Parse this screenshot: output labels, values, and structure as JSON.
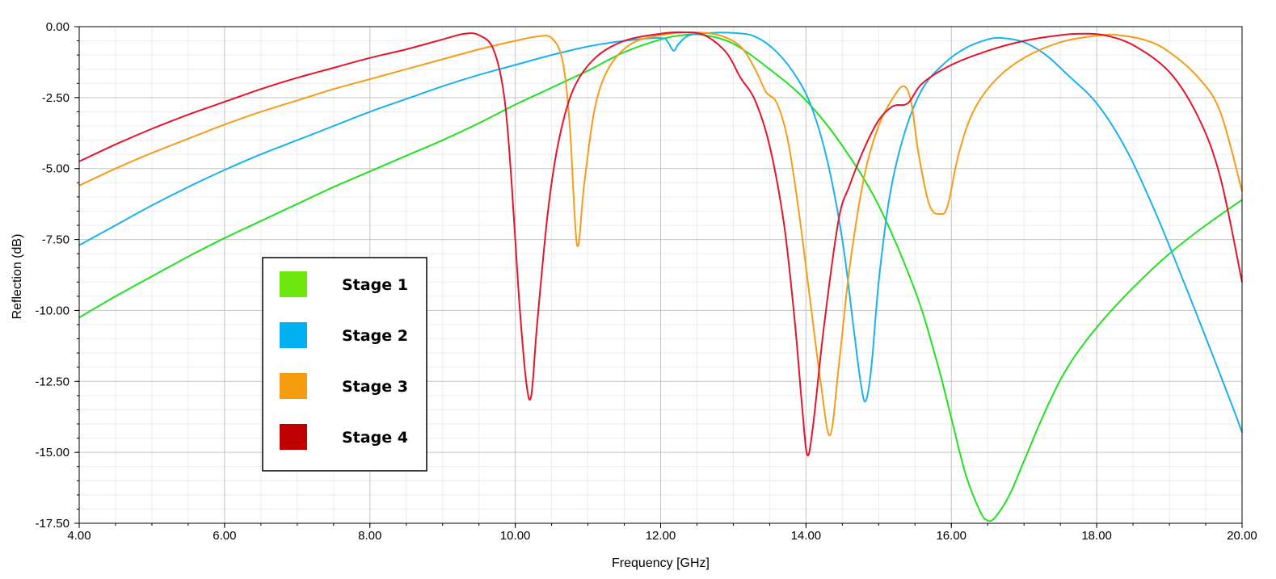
{
  "chart_data": {
    "type": "line",
    "title": "",
    "xlabel": "Frequency [GHz]",
    "ylabel": "Reflection (dB)",
    "xlim": [
      4,
      20
    ],
    "ylim": [
      -17.5,
      0
    ],
    "x_ticks": [
      "4.00",
      "6.00",
      "8.00",
      "10.00",
      "12.00",
      "14.00",
      "16.00",
      "18.00",
      "20.00"
    ],
    "y_ticks": [
      "0.00",
      "-2.50",
      "-5.00",
      "-7.50",
      "-10.00",
      "-12.50",
      "-15.00",
      "-17.50"
    ],
    "grid": true,
    "legend_position": "lower-left",
    "series": [
      {
        "name": "Stage 1",
        "color": "#22e022",
        "legend_color": "#6ee80f",
        "points": [
          [
            4.0,
            -10.25
          ],
          [
            4.5,
            -9.5
          ],
          [
            5.0,
            -8.8
          ],
          [
            5.5,
            -8.1
          ],
          [
            6.0,
            -7.45
          ],
          [
            6.5,
            -6.85
          ],
          [
            7.0,
            -6.25
          ],
          [
            7.5,
            -5.65
          ],
          [
            8.0,
            -5.1
          ],
          [
            8.5,
            -4.55
          ],
          [
            9.0,
            -4.0
          ],
          [
            9.5,
            -3.4
          ],
          [
            10.0,
            -2.75
          ],
          [
            10.5,
            -2.15
          ],
          [
            11.0,
            -1.55
          ],
          [
            11.5,
            -0.9
          ],
          [
            12.0,
            -0.45
          ],
          [
            12.3,
            -0.3
          ],
          [
            12.6,
            -0.3
          ],
          [
            13.0,
            -0.6
          ],
          [
            13.5,
            -1.5
          ],
          [
            14.0,
            -2.6
          ],
          [
            14.5,
            -4.2
          ],
          [
            15.0,
            -6.3
          ],
          [
            15.5,
            -9.3
          ],
          [
            15.8,
            -11.8
          ],
          [
            16.0,
            -13.8
          ],
          [
            16.2,
            -15.8
          ],
          [
            16.4,
            -17.1
          ],
          [
            16.5,
            -17.4
          ],
          [
            16.6,
            -17.3
          ],
          [
            16.8,
            -16.5
          ],
          [
            17.0,
            -15.3
          ],
          [
            17.3,
            -13.5
          ],
          [
            17.6,
            -12.0
          ],
          [
            18.0,
            -10.6
          ],
          [
            18.5,
            -9.2
          ],
          [
            19.0,
            -8.0
          ],
          [
            19.5,
            -7.0
          ],
          [
            20.0,
            -6.1
          ]
        ]
      },
      {
        "name": "Stage 2",
        "color": "#19b2ee",
        "legend_color": "#00b0f0",
        "points": [
          [
            4.0,
            -7.7
          ],
          [
            4.5,
            -7.0
          ],
          [
            5.0,
            -6.3
          ],
          [
            5.5,
            -5.65
          ],
          [
            6.0,
            -5.05
          ],
          [
            6.5,
            -4.5
          ],
          [
            7.0,
            -4.0
          ],
          [
            7.5,
            -3.5
          ],
          [
            8.0,
            -3.0
          ],
          [
            8.5,
            -2.55
          ],
          [
            9.0,
            -2.1
          ],
          [
            9.5,
            -1.7
          ],
          [
            10.0,
            -1.35
          ],
          [
            10.5,
            -1.0
          ],
          [
            11.0,
            -0.7
          ],
          [
            11.5,
            -0.5
          ],
          [
            12.0,
            -0.4
          ],
          [
            12.1,
            -0.55
          ],
          [
            12.18,
            -0.85
          ],
          [
            12.25,
            -0.6
          ],
          [
            12.4,
            -0.3
          ],
          [
            12.7,
            -0.22
          ],
          [
            13.0,
            -0.22
          ],
          [
            13.3,
            -0.35
          ],
          [
            13.6,
            -0.9
          ],
          [
            13.9,
            -1.9
          ],
          [
            14.1,
            -3.0
          ],
          [
            14.3,
            -4.8
          ],
          [
            14.5,
            -7.5
          ],
          [
            14.65,
            -10.5
          ],
          [
            14.75,
            -12.5
          ],
          [
            14.82,
            -13.2
          ],
          [
            14.9,
            -12.0
          ],
          [
            15.0,
            -9.0
          ],
          [
            15.15,
            -6.0
          ],
          [
            15.35,
            -3.8
          ],
          [
            15.6,
            -2.2
          ],
          [
            15.9,
            -1.3
          ],
          [
            16.2,
            -0.75
          ],
          [
            16.5,
            -0.45
          ],
          [
            16.7,
            -0.4
          ],
          [
            17.0,
            -0.55
          ],
          [
            17.3,
            -1.0
          ],
          [
            17.6,
            -1.7
          ],
          [
            18.0,
            -2.7
          ],
          [
            18.4,
            -4.3
          ],
          [
            18.8,
            -6.5
          ],
          [
            19.2,
            -9.0
          ],
          [
            19.6,
            -11.6
          ],
          [
            19.9,
            -13.6
          ],
          [
            20.0,
            -14.3
          ]
        ]
      },
      {
        "name": "Stage 3",
        "color": "#f59d18",
        "legend_color": "#f59d0e",
        "points": [
          [
            4.0,
            -5.6
          ],
          [
            4.5,
            -5.0
          ],
          [
            5.0,
            -4.45
          ],
          [
            5.5,
            -3.95
          ],
          [
            6.0,
            -3.45
          ],
          [
            6.5,
            -3.0
          ],
          [
            7.0,
            -2.6
          ],
          [
            7.5,
            -2.2
          ],
          [
            8.0,
            -1.85
          ],
          [
            8.5,
            -1.5
          ],
          [
            9.0,
            -1.15
          ],
          [
            9.5,
            -0.8
          ],
          [
            10.0,
            -0.5
          ],
          [
            10.3,
            -0.35
          ],
          [
            10.5,
            -0.4
          ],
          [
            10.65,
            -1.2
          ],
          [
            10.75,
            -3.5
          ],
          [
            10.85,
            -7.7
          ],
          [
            10.95,
            -5.5
          ],
          [
            11.1,
            -2.8
          ],
          [
            11.3,
            -1.4
          ],
          [
            11.6,
            -0.6
          ],
          [
            12.0,
            -0.3
          ],
          [
            12.4,
            -0.2
          ],
          [
            12.8,
            -0.3
          ],
          [
            13.1,
            -0.7
          ],
          [
            13.3,
            -1.5
          ],
          [
            13.45,
            -2.3
          ],
          [
            13.6,
            -2.7
          ],
          [
            13.75,
            -4.0
          ],
          [
            13.9,
            -6.5
          ],
          [
            14.05,
            -9.5
          ],
          [
            14.2,
            -12.5
          ],
          [
            14.33,
            -14.4
          ],
          [
            14.45,
            -12.0
          ],
          [
            14.6,
            -8.5
          ],
          [
            14.8,
            -5.3
          ],
          [
            15.0,
            -3.5
          ],
          [
            15.2,
            -2.5
          ],
          [
            15.35,
            -2.1
          ],
          [
            15.45,
            -2.7
          ],
          [
            15.55,
            -4.5
          ],
          [
            15.7,
            -6.3
          ],
          [
            15.85,
            -6.6
          ],
          [
            15.95,
            -6.3
          ],
          [
            16.1,
            -4.5
          ],
          [
            16.3,
            -3.0
          ],
          [
            16.6,
            -1.9
          ],
          [
            17.0,
            -1.1
          ],
          [
            17.5,
            -0.55
          ],
          [
            18.0,
            -0.32
          ],
          [
            18.3,
            -0.3
          ],
          [
            18.7,
            -0.5
          ],
          [
            19.0,
            -0.9
          ],
          [
            19.4,
            -1.8
          ],
          [
            19.7,
            -3.0
          ],
          [
            20.0,
            -5.8
          ]
        ]
      },
      {
        "name": "Stage 4",
        "color": "#e4142c",
        "legend_color": "#c00000",
        "points": [
          [
            4.0,
            -4.75
          ],
          [
            4.5,
            -4.15
          ],
          [
            5.0,
            -3.6
          ],
          [
            5.5,
            -3.1
          ],
          [
            6.0,
            -2.65
          ],
          [
            6.5,
            -2.2
          ],
          [
            7.0,
            -1.8
          ],
          [
            7.5,
            -1.45
          ],
          [
            8.0,
            -1.1
          ],
          [
            8.5,
            -0.8
          ],
          [
            9.0,
            -0.45
          ],
          [
            9.3,
            -0.25
          ],
          [
            9.5,
            -0.3
          ],
          [
            9.7,
            -0.8
          ],
          [
            9.85,
            -2.5
          ],
          [
            9.95,
            -5.5
          ],
          [
            10.05,
            -9.5
          ],
          [
            10.15,
            -12.5
          ],
          [
            10.22,
            -13.0
          ],
          [
            10.3,
            -10.5
          ],
          [
            10.45,
            -6.5
          ],
          [
            10.6,
            -4.0
          ],
          [
            10.8,
            -2.2
          ],
          [
            11.1,
            -1.1
          ],
          [
            11.5,
            -0.5
          ],
          [
            12.0,
            -0.25
          ],
          [
            12.3,
            -0.2
          ],
          [
            12.6,
            -0.3
          ],
          [
            12.9,
            -0.9
          ],
          [
            13.1,
            -1.8
          ],
          [
            13.3,
            -2.6
          ],
          [
            13.5,
            -4.2
          ],
          [
            13.7,
            -7.0
          ],
          [
            13.85,
            -10.5
          ],
          [
            13.95,
            -13.5
          ],
          [
            14.02,
            -15.1
          ],
          [
            14.1,
            -14.0
          ],
          [
            14.25,
            -10.5
          ],
          [
            14.45,
            -6.8
          ],
          [
            14.6,
            -5.6
          ],
          [
            14.8,
            -4.3
          ],
          [
            15.0,
            -3.3
          ],
          [
            15.2,
            -2.8
          ],
          [
            15.4,
            -2.7
          ],
          [
            15.6,
            -2.0
          ],
          [
            16.0,
            -1.35
          ],
          [
            16.5,
            -0.85
          ],
          [
            17.0,
            -0.5
          ],
          [
            17.5,
            -0.3
          ],
          [
            17.8,
            -0.25
          ],
          [
            18.1,
            -0.3
          ],
          [
            18.5,
            -0.65
          ],
          [
            19.0,
            -1.6
          ],
          [
            19.4,
            -3.2
          ],
          [
            19.7,
            -5.3
          ],
          [
            20.0,
            -9.0
          ]
        ]
      }
    ]
  }
}
